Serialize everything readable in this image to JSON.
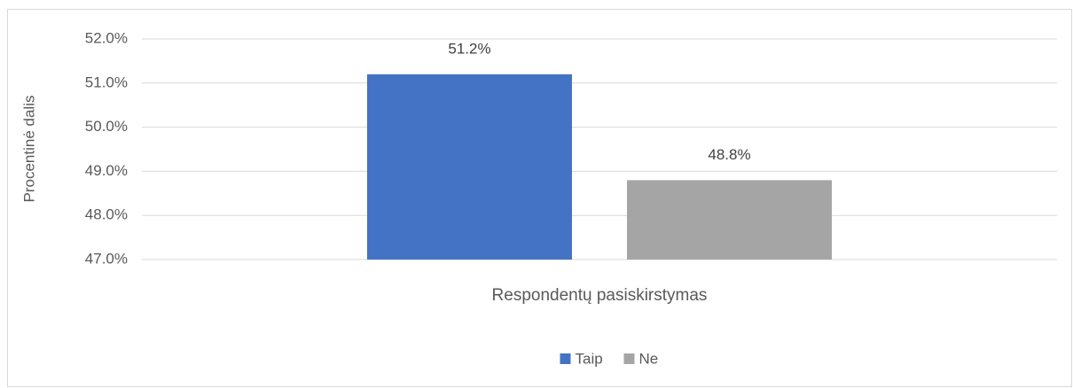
{
  "chart_data": {
    "type": "bar",
    "y_label": "Procentinė dalis",
    "categories": [
      "Respondentų pasiskirstymas"
    ],
    "series": [
      {
        "name": "Taip",
        "color": "#4472c4",
        "values": [
          51.2
        ],
        "value_labels": [
          "51.2%"
        ]
      },
      {
        "name": "Ne",
        "color": "#a5a5a5",
        "values": [
          48.8
        ],
        "value_labels": [
          "48.8%"
        ]
      }
    ],
    "ylim": [
      47,
      52
    ],
    "yticks": [
      {
        "value": 47,
        "label": "47.0%"
      },
      {
        "value": 48,
        "label": "48.0%"
      },
      {
        "value": 49,
        "label": "49.0%"
      },
      {
        "value": 50,
        "label": "50.0%"
      },
      {
        "value": 51,
        "label": "51.0%"
      },
      {
        "value": 52,
        "label": "52.0%"
      }
    ],
    "grid": true,
    "legend": "bottom"
  }
}
